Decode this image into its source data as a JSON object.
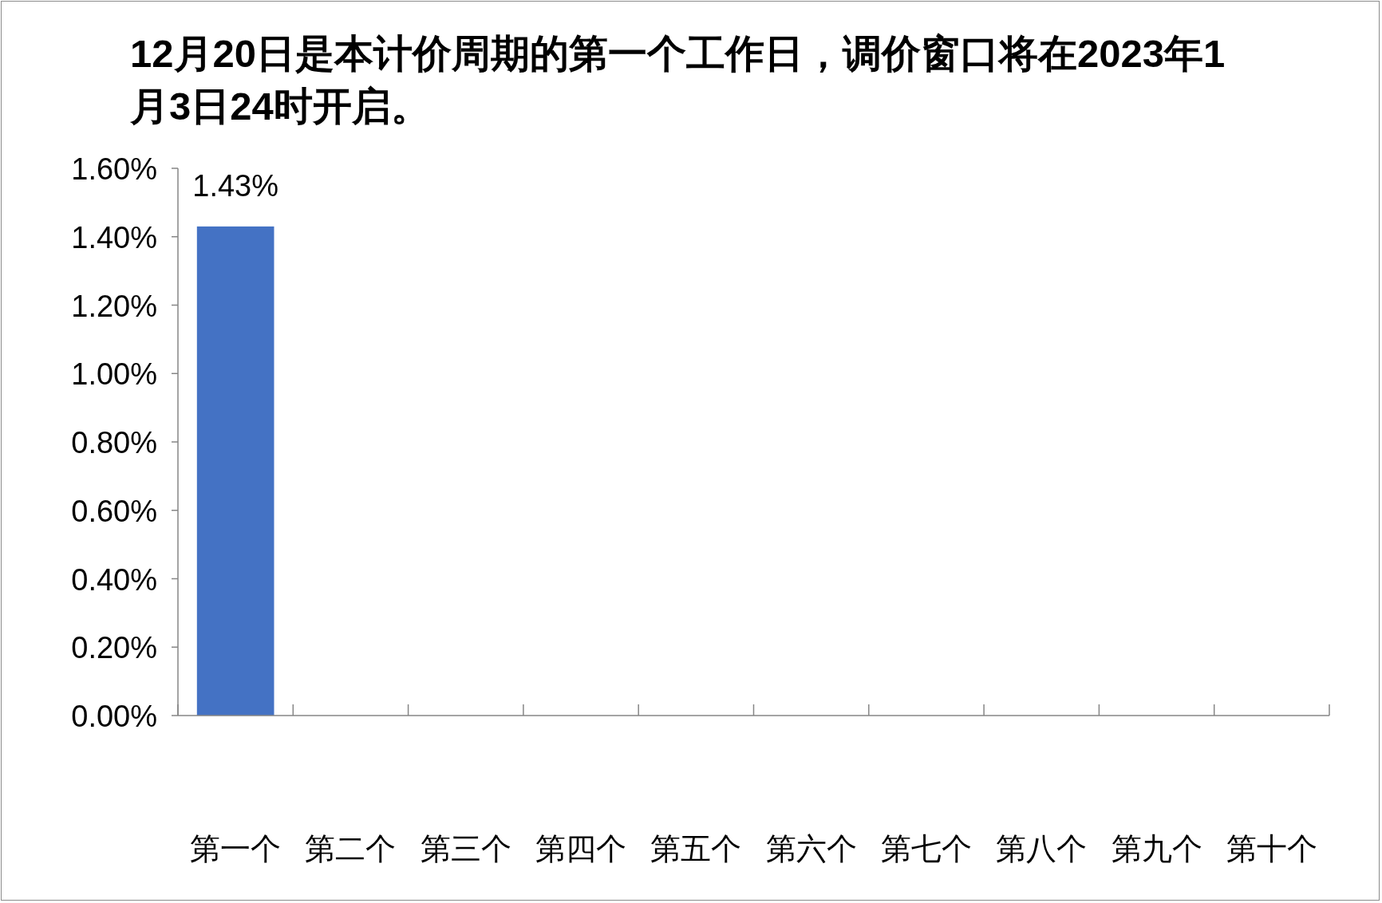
{
  "chart_data": {
    "type": "bar",
    "title": "12月20日是本计价周期的第一个工作日，调价窗口将在2023年1月3日24时开启。",
    "categories": [
      "第一个",
      "第二个",
      "第三个",
      "第四个",
      "第五个",
      "第六个",
      "第七个",
      "第八个",
      "第九个",
      "第十个"
    ],
    "values": [
      1.43,
      null,
      null,
      null,
      null,
      null,
      null,
      null,
      null,
      null
    ],
    "value_labels": [
      "1.43%",
      null,
      null,
      null,
      null,
      null,
      null,
      null,
      null,
      null
    ],
    "color": "#4472c4",
    "ylim": [
      0,
      1.6
    ],
    "yticks": [
      {
        "value": 0,
        "label": "0.00%"
      },
      {
        "value": 0.2,
        "label": "0.20%"
      },
      {
        "value": 0.4,
        "label": "0.40%"
      },
      {
        "value": 0.6,
        "label": "0.60%"
      },
      {
        "value": 0.8,
        "label": "0.80%"
      },
      {
        "value": 1.0,
        "label": "1.00%"
      },
      {
        "value": 1.2,
        "label": "1.20%"
      },
      {
        "value": 1.4,
        "label": "1.40%"
      },
      {
        "value": 1.6,
        "label": "1.60%"
      }
    ],
    "grid": false
  }
}
